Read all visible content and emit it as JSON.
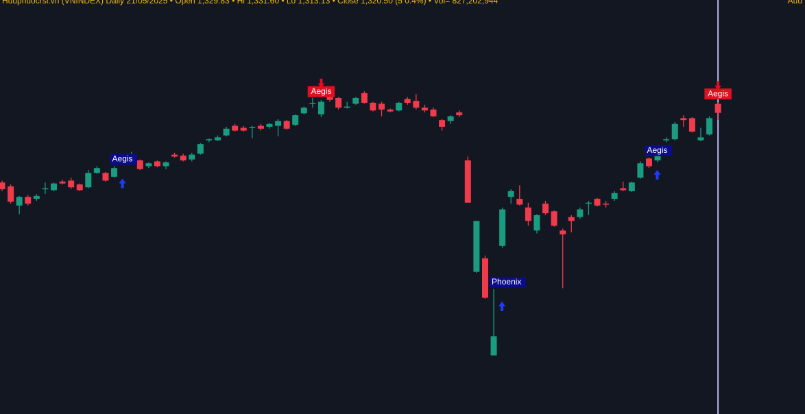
{
  "chart_data": {
    "type": "candlestick",
    "header": [
      "Huuphuocrsi.vn (VNINDEX) Daily 21/05/2025",
      "Open 1,329.83",
      "Hi 1,331.60",
      "Lo 1,313.13",
      "Close 1,320.50 (5 0.4%)",
      "Vol= 827,202,944"
    ],
    "corner_text": "Auu",
    "up_color": "#1a9c80",
    "down_color": "#ef3b4c",
    "cursor_color": "#b6b6f0",
    "ylim": [
      1007,
      1438
    ],
    "open": [
      1248,
      1244,
      1224,
      1233,
      1231,
      1241,
      1240,
      1249,
      1250,
      1246,
      1243,
      1258,
      1258,
      1254,
      1272,
      1271,
      1271,
      1265,
      1270,
      1265,
      1277,
      1276,
      1272,
      1278,
      1292,
      1292,
      1297,
      1307,
      1305,
      1305,
      1307,
      1306,
      1307,
      1312,
      1308,
      1320,
      1331,
      1319,
      1338,
      1336,
      1326,
      1330,
      1341,
      1331,
      1330,
      1324,
      1323,
      1335,
      1333,
      1326,
      1324,
      1313,
      1312,
      1321,
      1271,
      1155,
      1169,
      1068,
      1182,
      1233,
      1231,
      1222,
      1198,
      1226,
      1218,
      1198,
      1212,
      1212,
      1226,
      1231,
      1226,
      1231,
      1242,
      1239,
      1253,
      1273,
      1271,
      1292,
      1293,
      1315,
      1315,
      1292,
      1298,
      1329.83
    ],
    "high": [
      1250,
      1246,
      1234,
      1235,
      1236,
      1248,
      1248,
      1251,
      1253,
      1247,
      1261,
      1265,
      1259,
      1265,
      1273,
      1280,
      1272,
      1269,
      1271,
      1270,
      1279,
      1278,
      1279,
      1289,
      1294,
      1297,
      1306,
      1309,
      1307,
      1307,
      1309,
      1310,
      1314,
      1313,
      1319,
      1327,
      1336,
      1334,
      1340,
      1337,
      1332,
      1337,
      1343,
      1332,
      1332,
      1325,
      1332,
      1337,
      1340,
      1329,
      1326,
      1314,
      1318,
      1323,
      1275,
      1208,
      1172,
      1137,
      1222,
      1241,
      1245,
      1227,
      1215,
      1229,
      1219,
      1200,
      1214,
      1222,
      1229,
      1232,
      1229,
      1239,
      1249,
      1249,
      1270,
      1274,
      1280,
      1295,
      1311,
      1318,
      1316,
      1305,
      1317,
      1331.6
    ],
    "low": [
      1239,
      1226,
      1215,
      1224,
      1229,
      1236,
      1239,
      1246,
      1241,
      1239,
      1242,
      1257,
      1249,
      1253,
      1268,
      1269,
      1261,
      1263,
      1264,
      1262,
      1274,
      1270,
      1270,
      1277,
      1290,
      1291,
      1296,
      1301,
      1301,
      1294,
      1302,
      1304,
      1296,
      1303,
      1307,
      1319,
      1326,
      1316,
      1332,
      1324,
      1325,
      1329,
      1330,
      1322,
      1317,
      1321,
      1322,
      1329,
      1324,
      1321,
      1316,
      1302,
      1309,
      1316,
      1227,
      1154,
      1127,
      1068,
      1180,
      1226,
      1224,
      1203,
      1195,
      1214,
      1202,
      1138,
      1196,
      1210,
      1214,
      1223,
      1222,
      1229,
      1239,
      1238,
      1252,
      1263,
      1269,
      1290,
      1292,
      1306,
      1300,
      1291,
      1297,
      1313.13
    ],
    "close": [
      1241,
      1228,
      1233,
      1226,
      1234,
      1242,
      1247,
      1247,
      1243,
      1240,
      1258,
      1263,
      1250,
      1263,
      1269,
      1276,
      1262,
      1268,
      1265,
      1269,
      1275,
      1271,
      1277,
      1288,
      1293,
      1295,
      1304,
      1302,
      1302,
      1306,
      1304,
      1309,
      1312,
      1304,
      1318,
      1326,
      1331,
      1332,
      1334,
      1326,
      1327,
      1336,
      1331,
      1323,
      1324,
      1322,
      1331,
      1331,
      1326,
      1323,
      1317,
      1306,
      1317,
      1318,
      1227,
      1208,
      1128,
      1088,
      1220,
      1239,
      1225,
      1208,
      1214,
      1216,
      1203,
      1194,
      1208,
      1220,
      1227,
      1224,
      1225,
      1237,
      1240,
      1248,
      1268,
      1265,
      1278,
      1293,
      1309,
      1313,
      1301,
      1295,
      1315,
      1320.5
    ],
    "signals": [
      {
        "bar": 13,
        "label": "Aegis",
        "side": "buy"
      },
      {
        "bar": 37,
        "label": "Aegis",
        "side": "sell"
      },
      {
        "bar": 57,
        "label": "Phoenix",
        "side": "buy"
      },
      {
        "bar": 75,
        "label": "Aegis",
        "side": "buy"
      },
      {
        "bar": 83,
        "label": "Aegis",
        "side": "sell"
      }
    ]
  }
}
